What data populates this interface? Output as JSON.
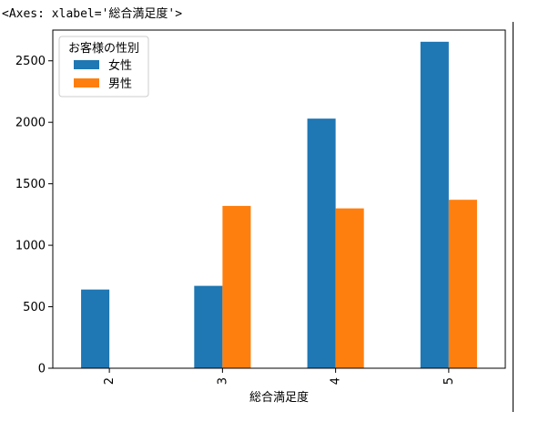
{
  "output": {
    "repr_text": "<Axes: xlabel='総合満足度'>"
  },
  "chart_data": {
    "type": "bar",
    "xlabel": "総合満足度",
    "ylabel": "",
    "categories": [
      "2",
      "3",
      "4",
      "5"
    ],
    "ylim": [
      0,
      2750
    ],
    "yticks": [
      0,
      500,
      1000,
      1500,
      2000,
      2500
    ],
    "legend": {
      "title": "お客様の性別",
      "placement": "top-left"
    },
    "series": [
      {
        "name": "女性",
        "color": "#1f77b4",
        "values": [
          640,
          670,
          2030,
          2655
        ]
      },
      {
        "name": "男性",
        "color": "#ff7f0e",
        "values": [
          0,
          1320,
          1300,
          1370
        ]
      }
    ]
  }
}
